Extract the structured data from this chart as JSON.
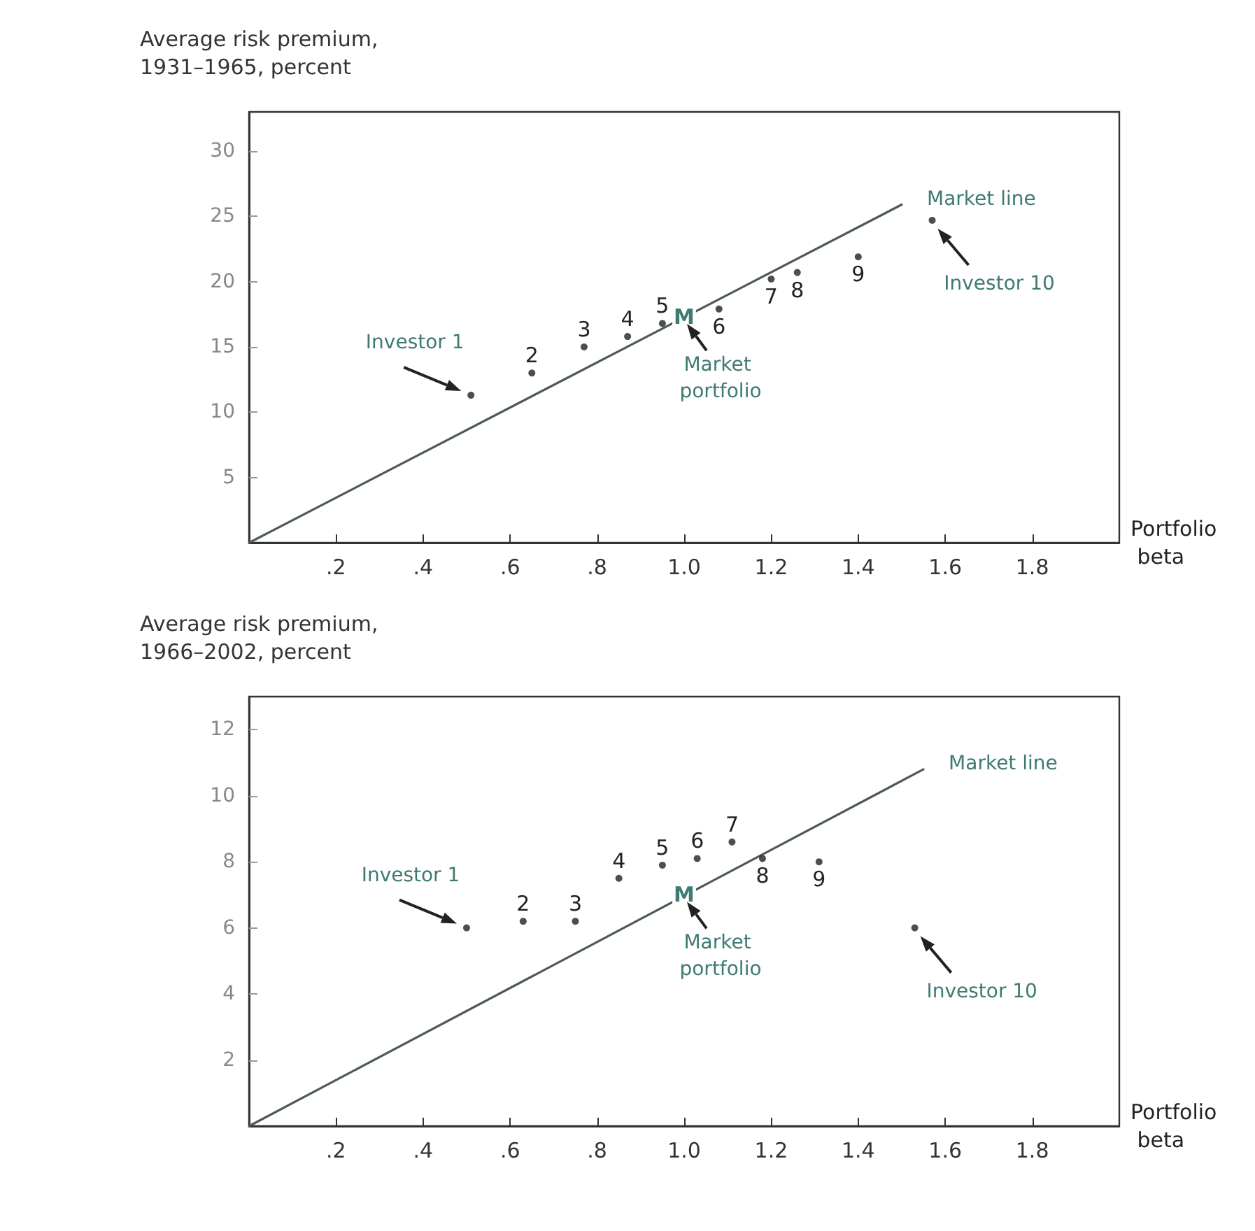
{
  "chart_data": [
    {
      "type": "scatter",
      "ylabel": "Average risk premium, 1931–1965, percent",
      "xlabel": "Portfolio beta",
      "marker": "circle",
      "xlim": [
        0,
        2.0
      ],
      "ylim": [
        0,
        33
      ],
      "xticks": [
        {
          "value": 0.2,
          "label": ".2"
        },
        {
          "value": 0.4,
          "label": ".4"
        },
        {
          "value": 0.6,
          "label": ".6"
        },
        {
          "value": 0.8,
          "label": ".8"
        },
        {
          "value": 1,
          "label": "1.0"
        },
        1.2,
        1.4,
        1.6,
        1.8
      ],
      "yticks": [
        5,
        10,
        15,
        20,
        25,
        30
      ],
      "series": [
        {
          "type": "scatter",
          "color": "#222222",
          "x": [
            0.51,
            0.65,
            0.77,
            0.87,
            0.95,
            1.08,
            1.2,
            1.26,
            1.4,
            1.57
          ],
          "values": [
            11.3,
            13.0,
            15.0,
            15.8,
            16.8,
            17.9,
            20.2,
            20.7,
            21.9,
            24.7
          ]
        },
        {
          "type": "line",
          "name": "Market line",
          "color": "#4d5a58",
          "marker": "none",
          "x": [
            0,
            1.5
          ],
          "values": [
            0,
            25.9
          ]
        }
      ],
      "annotations": [
        {
          "text": "Investor 1",
          "x": 0.51,
          "y": 11.3
        },
        {
          "text": "2",
          "x": 0.65,
          "y": 13.0
        },
        {
          "text": "3",
          "x": 0.77,
          "y": 15.0
        },
        {
          "text": "4",
          "x": 0.87,
          "y": 15.8
        },
        {
          "text": "5",
          "x": 0.95,
          "y": 16.8
        },
        {
          "text": "6",
          "x": 1.08,
          "y": 17.9
        },
        {
          "text": "7",
          "x": 1.2,
          "y": 20.2
        },
        {
          "text": "8",
          "x": 1.26,
          "y": 20.7
        },
        {
          "text": "9",
          "x": 1.4,
          "y": 21.9
        },
        {
          "text": "Investor 10",
          "x": 1.57,
          "y": 24.7
        },
        {
          "text": "M",
          "x": 1.0,
          "y": 17.3
        },
        {
          "text": "Market portfolio",
          "x": 1.0,
          "y": 17.3
        }
      ]
    },
    {
      "type": "scatter",
      "ylabel": "Average risk premium, 1966–2002, percent",
      "xlabel": "Portfolio beta",
      "marker": "circle",
      "xlim": [
        0,
        2.0
      ],
      "ylim": [
        0,
        13
      ],
      "xticks": [
        {
          "value": 0.2,
          "label": ".2"
        },
        {
          "value": 0.4,
          "label": ".4"
        },
        {
          "value": 0.6,
          "label": ".6"
        },
        {
          "value": 0.8,
          "label": ".8"
        },
        {
          "value": 1,
          "label": "1.0"
        },
        1.2,
        1.4,
        1.6,
        1.8
      ],
      "yticks": [
        2,
        4,
        6,
        8,
        10,
        12
      ],
      "series": [
        {
          "type": "scatter",
          "color": "#222222",
          "x": [
            0.5,
            0.63,
            0.75,
            0.85,
            0.95,
            1.03,
            1.11,
            1.18,
            1.31,
            1.53
          ],
          "values": [
            6.0,
            6.2,
            6.2,
            7.5,
            7.9,
            8.1,
            8.6,
            8.1,
            8.0,
            6.0
          ]
        },
        {
          "type": "line",
          "name": "Market line",
          "color": "#4d5a58",
          "marker": "none",
          "x": [
            0,
            1.55
          ],
          "values": [
            0,
            10.8
          ]
        }
      ],
      "annotations": [
        {
          "text": "Investor 1",
          "x": 0.5,
          "y": 6.0
        },
        {
          "text": "2",
          "x": 0.63,
          "y": 6.2
        },
        {
          "text": "3",
          "x": 0.75,
          "y": 6.2
        },
        {
          "text": "4",
          "x": 0.85,
          "y": 7.5
        },
        {
          "text": "5",
          "x": 0.95,
          "y": 7.9
        },
        {
          "text": "6",
          "x": 1.03,
          "y": 8.1
        },
        {
          "text": "7",
          "x": 1.11,
          "y": 8.6
        },
        {
          "text": "8",
          "x": 1.18,
          "y": 8.1
        },
        {
          "text": "9",
          "x": 1.31,
          "y": 8.0
        },
        {
          "text": "Investor 10",
          "x": 1.53,
          "y": 6.0
        },
        {
          "text": "M",
          "x": 1.0,
          "y": 7.0
        },
        {
          "text": "Market portfolio",
          "x": 1.0,
          "y": 7.0
        }
      ]
    }
  ]
}
